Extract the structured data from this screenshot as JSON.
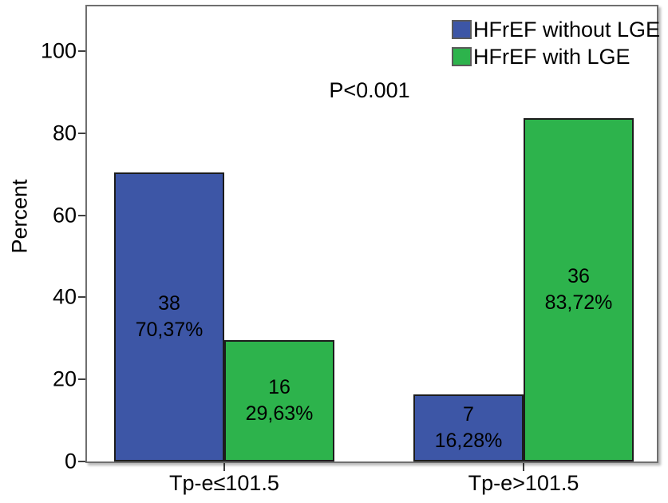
{
  "chart_data": {
    "type": "bar",
    "title": "",
    "ylabel": "Percent",
    "xlabel": "",
    "ylim": [
      0,
      111
    ],
    "yticks": [
      0,
      20,
      40,
      60,
      80,
      100
    ],
    "grid": false,
    "legend_position": "top-right-inside",
    "annotation": "P<0.001",
    "categories": [
      "Tp-e≤101.5",
      "Tp-e>101.5"
    ],
    "series": [
      {
        "name": "HFrEF without LGE",
        "color": "#3d56a6",
        "values": [
          70.37,
          16.28
        ],
        "counts": [
          "38",
          "7"
        ],
        "percent_labels": [
          "70,37%",
          "16,28%"
        ]
      },
      {
        "name": "HFrEF with LGE",
        "color": "#2db34c",
        "values": [
          29.63,
          83.72
        ],
        "counts": [
          "16",
          "36"
        ],
        "percent_labels": [
          "29,63%",
          "83,72%"
        ]
      }
    ]
  }
}
